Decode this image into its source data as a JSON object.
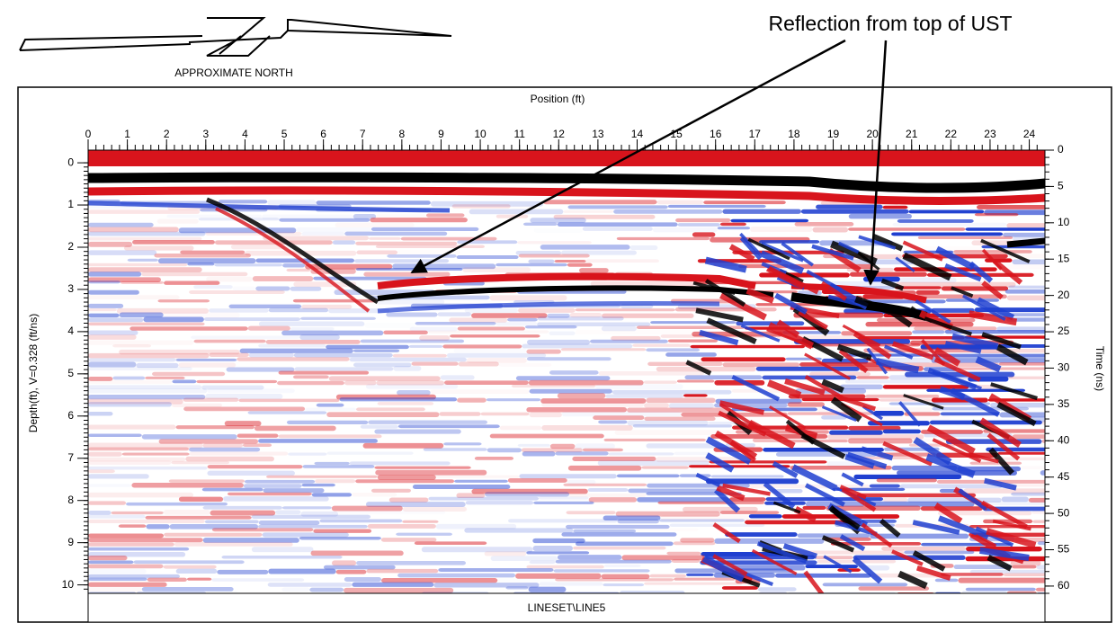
{
  "north_label": "APPROXIMATE NORTH",
  "annotation": "Reflection from top of UST",
  "chart_data": {
    "type": "radargram",
    "title": "Position (ft)",
    "xlim": [
      0,
      24.4
    ],
    "xticks": [
      0,
      1,
      2,
      3,
      4,
      5,
      6,
      7,
      8,
      9,
      10,
      11,
      12,
      13,
      14,
      15,
      16,
      17,
      18,
      19,
      20,
      21,
      22,
      23,
      24
    ],
    "ylabel": "Depth(ft), V=0.328 (ft/ns)",
    "ylim": [
      -0.3,
      10.2
    ],
    "yticks": [
      0,
      1,
      2,
      3,
      4,
      5,
      6,
      7,
      8,
      9,
      10
    ],
    "y2label": "Time (ns)",
    "y2lim": [
      0,
      61
    ],
    "y2ticks": [
      0,
      5,
      10,
      15,
      20,
      25,
      30,
      35,
      40,
      45,
      50,
      55,
      60
    ],
    "footer": "LINESET\\LINE5"
  }
}
